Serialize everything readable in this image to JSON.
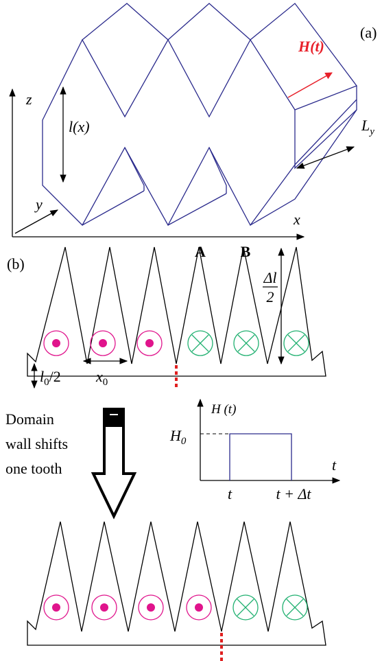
{
  "panel_a": {
    "label": "(a)",
    "field_label": "H(t)",
    "z_axis": "z",
    "y_axis": "y",
    "x_axis": "x",
    "height_label": "l(x)",
    "width_label": {
      "main": "L",
      "sub": "y"
    }
  },
  "panel_b": {
    "label": "(b)",
    "tooth_labels": [
      "A",
      "B"
    ],
    "amplitude_label": {
      "numerator": "Δl",
      "denominator": "2"
    },
    "base_label": {
      "main": "l",
      "sub": "0",
      "rest": "/2"
    },
    "period_label": {
      "main": "x",
      "sub": "0"
    },
    "caption_lines": [
      "Domain",
      "wall shifts",
      "one tooth"
    ]
  },
  "pulse_plot": {
    "y_label": "H (t)",
    "level_label": {
      "main": "H",
      "sub": "0"
    },
    "x_label": "t",
    "start_label": "t",
    "end_label": "t + Δt"
  }
}
